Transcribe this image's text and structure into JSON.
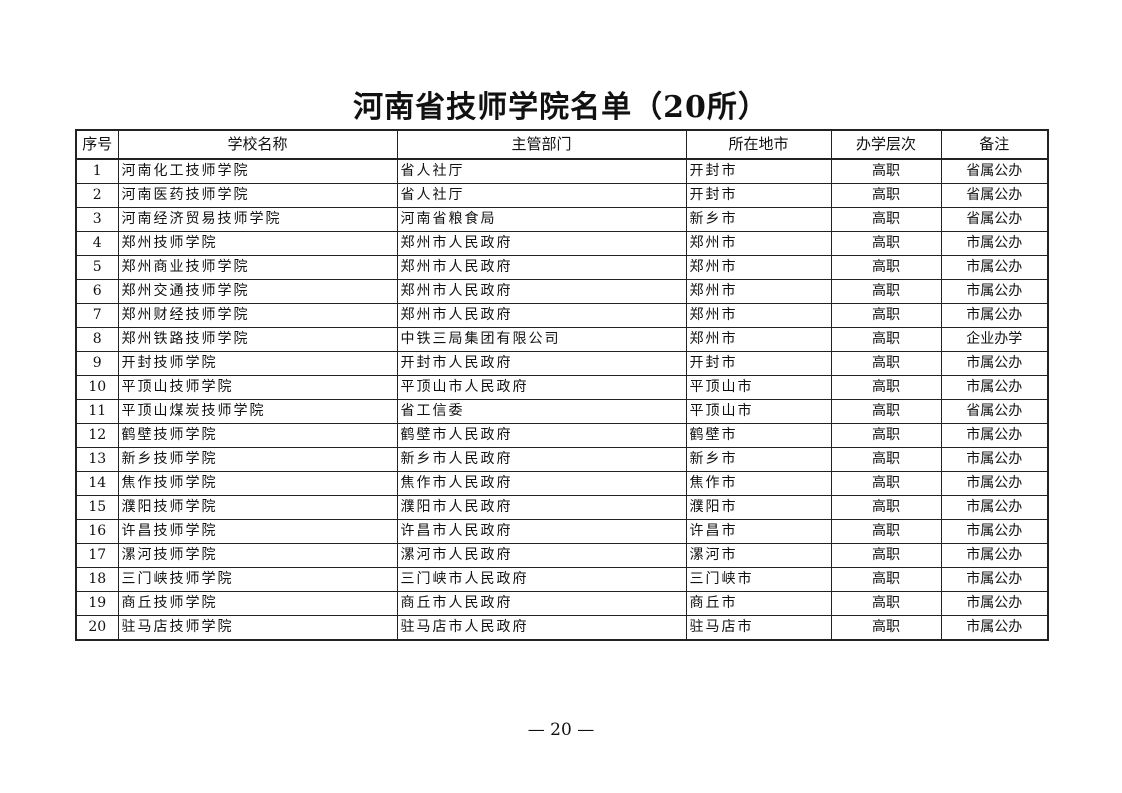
{
  "title": "河南省技师学院名单（20所）",
  "table": {
    "headers": [
      "序号",
      "学校名称",
      "主管部门",
      "所在地市",
      "办学层次",
      "备注"
    ],
    "rows": [
      [
        "1",
        "河南化工技师学院",
        "省人社厅",
        "开封市",
        "高职",
        "省属公办"
      ],
      [
        "2",
        "河南医药技师学院",
        "省人社厅",
        "开封市",
        "高职",
        "省属公办"
      ],
      [
        "3",
        "河南经济贸易技师学院",
        "河南省粮食局",
        "新乡市",
        "高职",
        "省属公办"
      ],
      [
        "4",
        "郑州技师学院",
        "郑州市人民政府",
        "郑州市",
        "高职",
        "市属公办"
      ],
      [
        "5",
        "郑州商业技师学院",
        "郑州市人民政府",
        "郑州市",
        "高职",
        "市属公办"
      ],
      [
        "6",
        "郑州交通技师学院",
        "郑州市人民政府",
        "郑州市",
        "高职",
        "市属公办"
      ],
      [
        "7",
        "郑州财经技师学院",
        "郑州市人民政府",
        "郑州市",
        "高职",
        "市属公办"
      ],
      [
        "8",
        "郑州铁路技师学院",
        "中铁三局集团有限公司",
        "郑州市",
        "高职",
        "企业办学"
      ],
      [
        "9",
        "开封技师学院",
        "开封市人民政府",
        "开封市",
        "高职",
        "市属公办"
      ],
      [
        "10",
        "平顶山技师学院",
        "平顶山市人民政府",
        "平顶山市",
        "高职",
        "市属公办"
      ],
      [
        "11",
        "平顶山煤炭技师学院",
        "省工信委",
        "平顶山市",
        "高职",
        "省属公办"
      ],
      [
        "12",
        "鹤壁技师学院",
        "鹤壁市人民政府",
        "鹤壁市",
        "高职",
        "市属公办"
      ],
      [
        "13",
        "新乡技师学院",
        "新乡市人民政府",
        "新乡市",
        "高职",
        "市属公办"
      ],
      [
        "14",
        "焦作技师学院",
        "焦作市人民政府",
        "焦作市",
        "高职",
        "市属公办"
      ],
      [
        "15",
        "濮阳技师学院",
        "濮阳市人民政府",
        "濮阳市",
        "高职",
        "市属公办"
      ],
      [
        "16",
        "许昌技师学院",
        "许昌市人民政府",
        "许昌市",
        "高职",
        "市属公办"
      ],
      [
        "17",
        "漯河技师学院",
        "漯河市人民政府",
        "漯河市",
        "高职",
        "市属公办"
      ],
      [
        "18",
        "三门峡技师学院",
        "三门峡市人民政府",
        "三门峡市",
        "高职",
        "市属公办"
      ],
      [
        "19",
        "商丘技师学院",
        "商丘市人民政府",
        "商丘市",
        "高职",
        "市属公办"
      ],
      [
        "20",
        "驻马店技师学院",
        "驻马店市人民政府",
        "驻马店市",
        "高职",
        "市属公办"
      ]
    ]
  },
  "footer": {
    "page": "— 20 —"
  }
}
